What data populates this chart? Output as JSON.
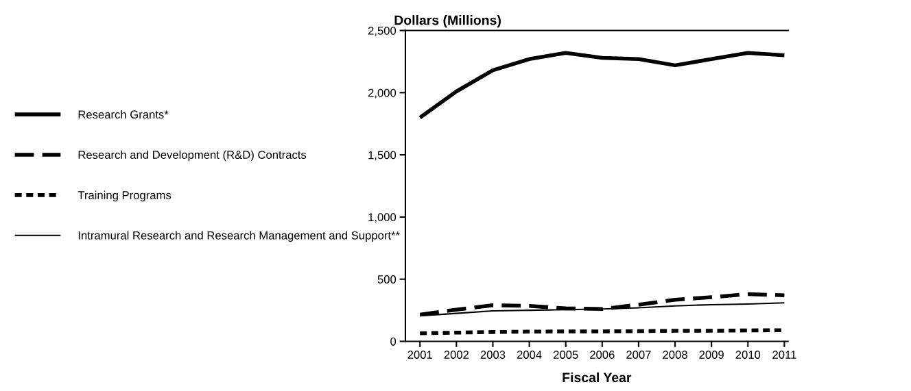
{
  "chart_data": {
    "type": "line",
    "title": "Dollars (Millions)",
    "xlabel": "Fiscal Year",
    "categories": [
      "2001",
      "2002",
      "2003",
      "2004",
      "2005",
      "2006",
      "2007",
      "2008",
      "2009",
      "2010",
      "2011"
    ],
    "series": [
      {
        "name": "Research Grants*",
        "color": "#000000",
        "line_style": "solid",
        "values": [
          1800,
          2010,
          2180,
          2270,
          2320,
          2280,
          2270,
          2220,
          2270,
          2320,
          2300
        ]
      },
      {
        "name": "Research and Development (R&D) Contracts",
        "color": "#000000",
        "line_style": "dashed",
        "values": [
          215,
          255,
          290,
          285,
          265,
          260,
          295,
          335,
          355,
          380,
          370
        ]
      },
      {
        "name": "Training Programs",
        "color": "#000000",
        "line_style": "dotted",
        "values": [
          65,
          70,
          75,
          78,
          80,
          80,
          82,
          85,
          85,
          88,
          90
        ]
      },
      {
        "name": "Intramural Research and Research Management and Support**",
        "color": "#000000",
        "line_style": "solid",
        "values": [
          205,
          225,
          245,
          250,
          255,
          260,
          270,
          285,
          295,
          300,
          310
        ]
      }
    ],
    "ylim": [
      0,
      2500
    ],
    "yticks": [
      0,
      {
        "value": 500,
        "label": "500"
      },
      {
        "value": 1000,
        "label": "1,000"
      },
      {
        "value": 1500,
        "label": "1,500"
      },
      {
        "value": 2000,
        "label": "2,000"
      },
      {
        "value": 2500,
        "label": "2,500"
      }
    ],
    "grid": false,
    "legend": "left",
    "marker": "none"
  }
}
